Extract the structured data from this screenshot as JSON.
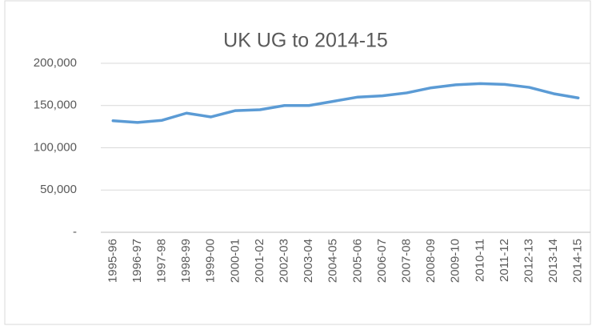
{
  "chart_data": {
    "type": "line",
    "title": "UK UG to 2014-15",
    "categories": [
      "1995-96",
      "1996-97",
      "1997-98",
      "1998-99",
      "1999-00",
      "2000-01",
      "2001-02",
      "2002-03",
      "2003-04",
      "2004-05",
      "2005-06",
      "2006-07",
      "2007-08",
      "2008-09",
      "2009-10",
      "2010-11",
      "2011-12",
      "2012-13",
      "2013-14",
      "2014-15"
    ],
    "series": [
      {
        "color": "#5b9bd5",
        "values": [
          132000,
          130000,
          132500,
          141000,
          136500,
          144000,
          145000,
          150000,
          150000,
          155000,
          160000,
          161500,
          165000,
          171000,
          174500,
          176000,
          175000,
          171500,
          164000,
          159000
        ]
      }
    ],
    "ylim": [
      0,
      200000
    ],
    "yticks": [
      {
        "value": 0,
        "label": "-"
      },
      {
        "value": 50000,
        "label": "50,000"
      },
      {
        "value": 100000,
        "label": "100,000"
      },
      {
        "value": 150000,
        "label": "150,000"
      },
      {
        "value": 200000,
        "label": "200,000"
      }
    ],
    "grid": true
  }
}
